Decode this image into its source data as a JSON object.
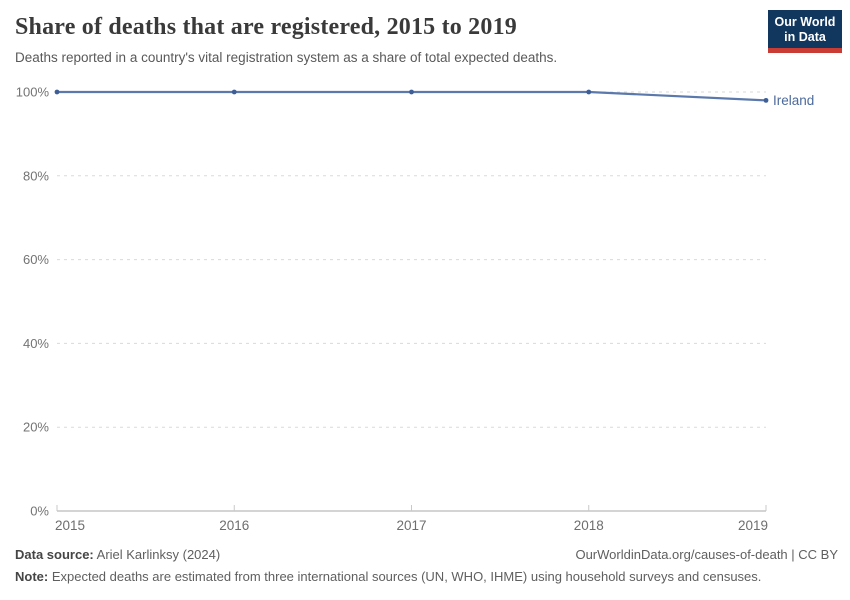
{
  "header": {
    "title": "Share of deaths that are registered, 2015 to 2019",
    "subtitle": "Deaths reported in a country's vital registration system as a share of total expected deaths.",
    "logo": {
      "line1": "Our World",
      "line2": "in Data"
    }
  },
  "chart_data": {
    "type": "line",
    "title": "Share of deaths that are registered, 2015 to 2019",
    "xlabel": "",
    "ylabel": "",
    "x": [
      2015,
      2016,
      2017,
      2018,
      2019
    ],
    "series": [
      {
        "name": "Ireland",
        "values": [
          100,
          100,
          100,
          100,
          98
        ],
        "color": "#5b79ab",
        "marker_color": "#3e5f96",
        "label_color": "#4c6a9c"
      }
    ],
    "ylim": [
      0,
      100
    ],
    "yticks": [
      0,
      20,
      40,
      60,
      80,
      100
    ],
    "ytick_suffix": "%",
    "grid": "horizontal-dashed",
    "grid_color": "#dadada",
    "axis_color": "#a8a8a8",
    "tick_color": "#c8c8c8",
    "legend_position": "end-of-line-label"
  },
  "footer": {
    "datasource_label": "Data source:",
    "datasource_value": " Ariel Karlinksy (2024)",
    "attribution": "OurWorldinData.org/causes-of-death | CC BY",
    "note_label": "Note:",
    "note_value": " Expected deaths are estimated from three international sources (UN, WHO, IHME) using household surveys and censuses."
  },
  "colors": {
    "logo_navy": "#12375e",
    "logo_red": "#c93c36",
    "title_text": "#3a3a3a",
    "body_text": "#5f5f5f"
  }
}
